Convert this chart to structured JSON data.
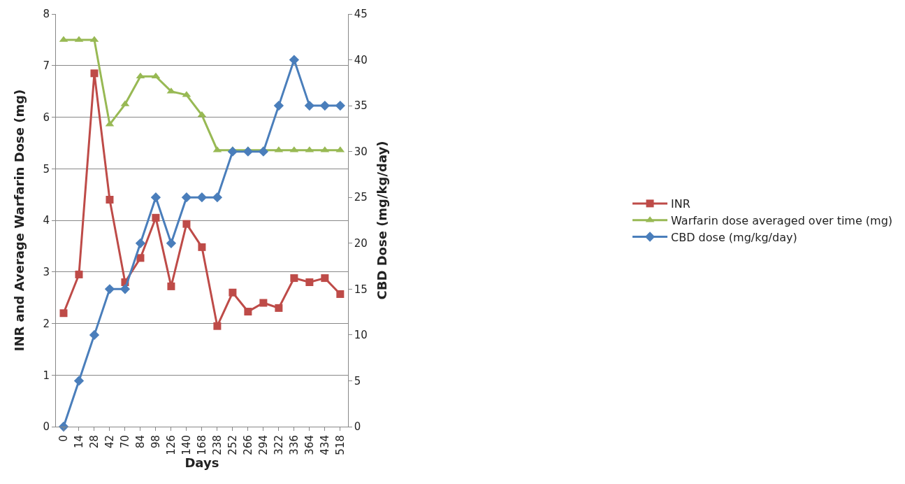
{
  "chart_data": {
    "type": "line",
    "xlabel": "Days",
    "ylabel": "INR and Average Warfarin Dose (mg)",
    "y2label": "CBD Dose (mg/kg/day)",
    "categories": [
      "0",
      "14",
      "28",
      "42",
      "70",
      "84",
      "98",
      "126",
      "140",
      "168",
      "238",
      "252",
      "266",
      "294",
      "322",
      "336",
      "364",
      "434",
      "518"
    ],
    "series": [
      {
        "name": "INR",
        "color": "#be4b48",
        "marker": "square",
        "values": [
          2.2,
          2.95,
          6.85,
          4.4,
          2.8,
          3.27,
          4.05,
          2.72,
          3.93,
          3.48,
          1.95,
          2.6,
          2.23,
          2.4,
          2.3,
          2.88,
          2.8,
          2.88,
          2.57
        ]
      },
      {
        "name": "Warfarin dose averaged over time (mg)",
        "color": "#98b954",
        "marker": "triangle",
        "values": [
          7.5,
          7.5,
          7.5,
          5.86,
          6.25,
          6.79,
          6.79,
          6.5,
          6.43,
          6.04,
          5.36,
          5.36,
          5.36,
          5.36,
          5.36,
          5.36,
          5.36,
          5.36,
          5.36
        ]
      },
      {
        "name": "CBD dose (mg/kg/day)",
        "color": "#4a7ebb",
        "marker": "diamond",
        "axis": "y2",
        "values": [
          0,
          5,
          10,
          15,
          15,
          20,
          25,
          20,
          25,
          25,
          25,
          30,
          30,
          30,
          35,
          40,
          35,
          35,
          35
        ]
      }
    ],
    "ylim": [
      0,
      8
    ],
    "yticks": [
      0,
      1,
      2,
      3,
      4,
      5,
      6,
      7,
      8
    ],
    "y2lim": [
      0,
      45
    ],
    "y2ticks": [
      0,
      5,
      10,
      15,
      20,
      25,
      30,
      35,
      40,
      45
    ],
    "grid": "y",
    "legend": "right",
    "line_style": "solid"
  }
}
